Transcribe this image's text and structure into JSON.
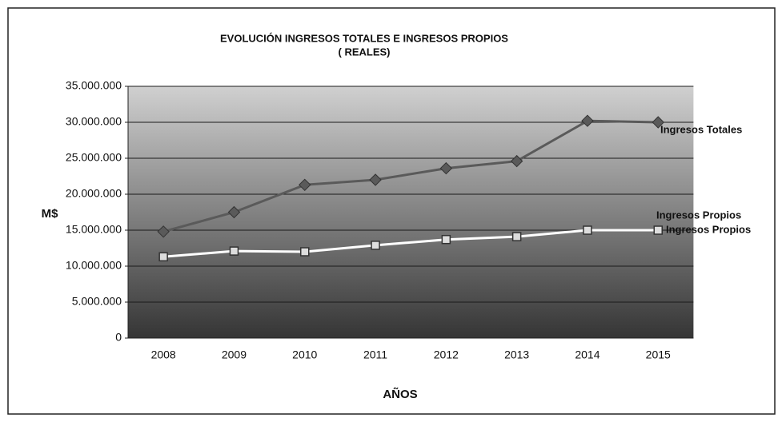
{
  "chart_data": {
    "type": "line",
    "title": "EVOLUCIÓN INGRESOS TOTALES E INGRESOS PROPIOS",
    "subtitle": "( REALES)",
    "y_label": "M$",
    "x_label": "AÑOS",
    "categories": [
      "2008",
      "2009",
      "2010",
      "2011",
      "2012",
      "2013",
      "2014",
      "2015"
    ],
    "series": [
      {
        "name": "Ingresos Totales",
        "color": "#5a5a5a",
        "values": [
          14800000,
          17500000,
          21300000,
          22000000,
          23600000,
          24600000,
          30200000,
          30000000
        ]
      },
      {
        "name": "Ingresos Propios",
        "color": "#ffffff",
        "values": [
          11300000,
          12100000,
          12000000,
          12900000,
          13700000,
          14100000,
          15000000,
          15000000
        ]
      }
    ],
    "annotations": [
      "Ingresos Propios"
    ],
    "ylim": [
      0,
      35000000
    ],
    "yticks": [
      0,
      {
        "value": 5000000,
        "label": "5.000.000"
      },
      {
        "value": 10000000,
        "label": "10.000.000"
      },
      {
        "value": 15000000,
        "label": "15.000.000"
      },
      {
        "value": 20000000,
        "label": "20.000.000"
      },
      {
        "value": 25000000,
        "label": "25.000.000"
      },
      {
        "value": 30000000,
        "label": "30.000.000"
      },
      {
        "value": 35000000,
        "label": "35.000.000"
      }
    ],
    "grid": true
  }
}
